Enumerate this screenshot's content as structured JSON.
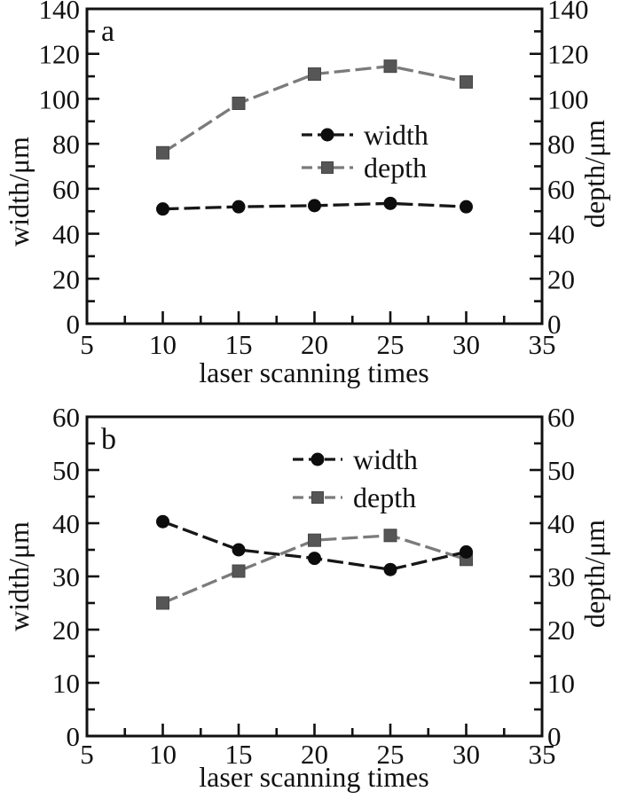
{
  "figure": {
    "background": "#ffffff",
    "ink_color": "#111111",
    "description": "Two stacked line charts of groove width and depth versus laser scanning times"
  },
  "chart_data": [
    {
      "type": "line",
      "panel_label": "a",
      "xlabel": "laser scanning times",
      "ylabel_left": "width/μm",
      "ylabel_right": "depth/μm",
      "xlim": [
        5,
        35
      ],
      "ylim": [
        0,
        140
      ],
      "x_tick_labels": [
        5,
        10,
        15,
        20,
        25,
        30,
        35
      ],
      "x_major_ticks": [
        10,
        15,
        20,
        25,
        30
      ],
      "x_minor_ticks": [
        7.5,
        12.5,
        17.5,
        22.5,
        27.5,
        32.5
      ],
      "y_major_step": 20,
      "y_minor_step": 10,
      "grid": false,
      "legend_position": "center-right-inside",
      "x": [
        10,
        15,
        20,
        25,
        30
      ],
      "series": [
        {
          "name": "width",
          "marker": "circle",
          "line_color": "#161616",
          "marker_color": "#0d0d0d",
          "values": [
            51,
            52,
            52.5,
            53.5,
            52
          ]
        },
        {
          "name": "depth",
          "marker": "square",
          "line_color": "#7b7b7b",
          "marker_color": "#565656",
          "values": [
            76,
            98,
            111,
            114.5,
            107.5
          ]
        }
      ]
    },
    {
      "type": "line",
      "panel_label": "b",
      "xlabel": "laser scanning times",
      "ylabel_left": "width/μm",
      "ylabel_right": "depth/μm",
      "xlim": [
        5,
        35
      ],
      "ylim": [
        0,
        60
      ],
      "x_tick_labels": [
        5,
        10,
        15,
        20,
        25,
        30,
        35
      ],
      "x_major_ticks": [
        10,
        15,
        20,
        25,
        30
      ],
      "x_minor_ticks": [
        7.5,
        12.5,
        17.5,
        22.5,
        27.5,
        32.5
      ],
      "y_major_step": 10,
      "y_minor_step": 5,
      "grid": false,
      "legend_position": "top-center-inside",
      "x": [
        10,
        15,
        20,
        25,
        30
      ],
      "series": [
        {
          "name": "width",
          "marker": "circle",
          "line_color": "#161616",
          "marker_color": "#0d0d0d",
          "values": [
            40.3,
            35,
            33.4,
            31.3,
            34.6
          ]
        },
        {
          "name": "depth",
          "marker": "square",
          "line_color": "#7b7b7b",
          "marker_color": "#565656",
          "values": [
            25,
            31,
            36.8,
            37.7,
            33.2
          ]
        }
      ]
    }
  ]
}
